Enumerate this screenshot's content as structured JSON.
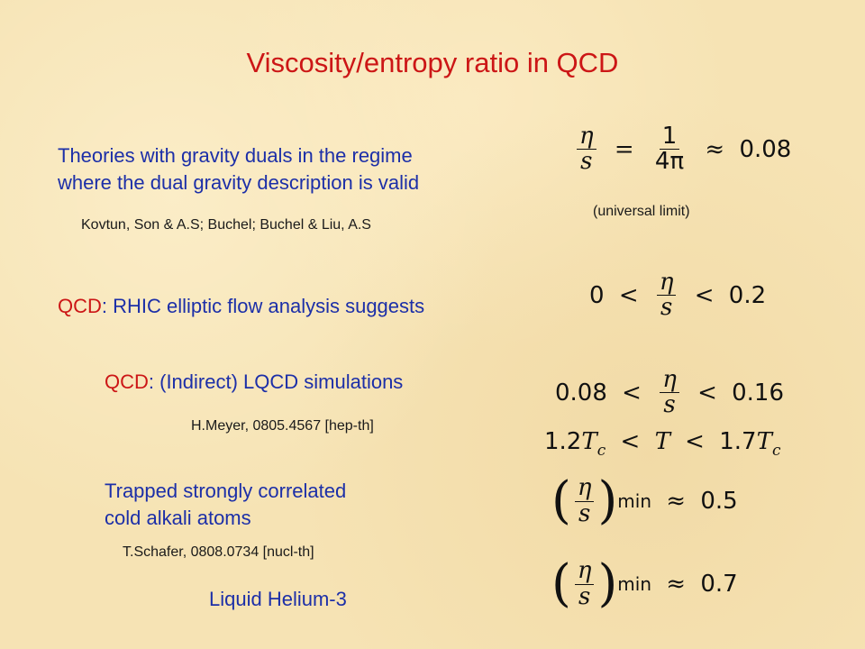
{
  "title": "Viscosity/entropy ratio in QCD",
  "gravity": {
    "line1": "Theories with gravity duals in the regime",
    "line2": "where the dual gravity description is valid",
    "ref": "Kovtun, Son & A.S; Buchel; Buchel & Liu, A.S",
    "formula": {
      "eta": "η",
      "s": "s",
      "eq": "=",
      "one": "1",
      "four_pi": "4π",
      "approx": "≈",
      "value": "0.08"
    },
    "note": "(universal limit)"
  },
  "rhic": {
    "prefix": "QCD",
    "text": ": RHIC elliptic flow analysis suggests",
    "formula": {
      "low": "0",
      "lt1": "<",
      "eta": "η",
      "s": "s",
      "lt2": "<",
      "high": "0.2"
    }
  },
  "lqcd": {
    "prefix": "QCD",
    "text": ": (Indirect) LQCD simulations",
    "ref": "H.Meyer, 0805.4567 [hep-th]",
    "formula": {
      "low": "0.08",
      "lt1": "<",
      "eta": "η",
      "s": "s",
      "lt2": "<",
      "high": "0.16"
    },
    "range": {
      "c1": "1.2",
      "tc1": "T",
      "c1sub": "c",
      "lt1": "<",
      "t": "T",
      "lt2": "<",
      "c2": "1.7",
      "tc2": "T",
      "c2sub": "c"
    }
  },
  "atoms": {
    "line1": "Trapped strongly correlated",
    "line2": "cold alkali atoms",
    "ref": "T.Schafer, 0808.0734 [nucl-th]",
    "formula": {
      "lp": "(",
      "eta": "η",
      "s": "s",
      "rp": ")",
      "sub": "min",
      "approx": "≈",
      "value": "0.5"
    }
  },
  "helium": {
    "label": "Liquid Helium-3",
    "formula": {
      "lp": "(",
      "eta": "η",
      "s": "s",
      "rp": ")",
      "sub": "min",
      "approx": "≈",
      "value": "0.7"
    }
  }
}
